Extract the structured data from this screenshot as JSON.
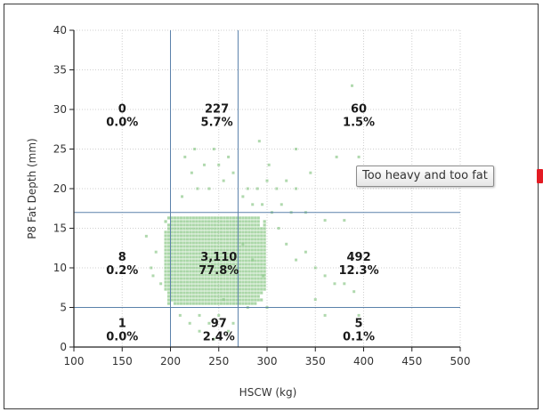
{
  "chart_data": {
    "type": "scatter",
    "title": "",
    "xlabel": "HSCW (kg)",
    "ylabel": "P8 Fat Depth (mm)",
    "xlim": [
      100,
      500
    ],
    "ylim": [
      0,
      40
    ],
    "x_ticks": [
      "100",
      "150",
      "200",
      "250",
      "300",
      "350",
      "400",
      "450",
      "500"
    ],
    "y_ticks": [
      "0",
      "5",
      "10",
      "15",
      "20",
      "25",
      "30",
      "35",
      "40"
    ],
    "grid": true,
    "threshold_lines": {
      "x": [
        200,
        270
      ],
      "y": [
        5,
        17
      ]
    },
    "series_color": "#8fc98b",
    "points": [
      [
        215,
        24
      ],
      [
        225,
        25
      ],
      [
        245,
        25
      ],
      [
        235,
        23
      ],
      [
        250,
        23
      ],
      [
        260,
        24
      ],
      [
        222,
        22
      ],
      [
        228,
        20
      ],
      [
        240,
        20
      ],
      [
        255,
        21
      ],
      [
        265,
        22
      ],
      [
        280,
        20
      ],
      [
        290,
        20
      ],
      [
        300,
        21
      ],
      [
        310,
        20
      ],
      [
        320,
        21
      ],
      [
        330,
        20
      ],
      [
        212,
        19
      ],
      [
        275,
        19
      ],
      [
        285,
        18
      ],
      [
        295,
        18
      ],
      [
        305,
        17
      ],
      [
        315,
        18
      ],
      [
        325,
        17
      ],
      [
        340,
        17
      ],
      [
        360,
        16
      ],
      [
        380,
        16
      ],
      [
        395,
        24
      ],
      [
        388,
        33
      ],
      [
        330,
        25
      ],
      [
        345,
        22
      ],
      [
        372,
        24
      ],
      [
        320,
        13
      ],
      [
        330,
        11
      ],
      [
        340,
        12
      ],
      [
        350,
        10
      ],
      [
        360,
        9
      ],
      [
        370,
        8
      ],
      [
        380,
        8
      ],
      [
        390,
        7
      ],
      [
        210,
        4
      ],
      [
        220,
        3
      ],
      [
        230,
        2
      ],
      [
        240,
        3
      ],
      [
        250,
        4
      ],
      [
        260,
        2
      ],
      [
        265,
        3
      ],
      [
        245,
        1
      ],
      [
        230,
        4
      ],
      [
        360,
        4
      ],
      [
        395,
        4
      ],
      [
        175,
        14
      ],
      [
        180,
        10
      ],
      [
        182,
        9
      ],
      [
        190,
        8
      ],
      [
        185,
        12
      ],
      [
        292,
        26
      ],
      [
        302,
        23
      ],
      [
        312,
        15
      ],
      [
        350,
        6
      ],
      [
        300,
        5
      ],
      [
        280,
        5
      ],
      [
        255,
        6
      ],
      [
        275,
        13
      ],
      [
        285,
        11
      ],
      [
        296,
        9
      ]
    ],
    "dense_region": {
      "x": [
        195,
        298
      ],
      "y": [
        5.5,
        16.5
      ]
    },
    "cells": [
      {
        "count": "0",
        "pct": "0.0%",
        "x": 150,
        "y": 29.5
      },
      {
        "count": "227",
        "pct": "5.7%",
        "x": 248,
        "y": 29.5
      },
      {
        "count": "60",
        "pct": "1.5%",
        "x": 395,
        "y": 29.5
      },
      {
        "count": "8",
        "pct": "0.2%",
        "x": 150,
        "y": 10.8
      },
      {
        "count": "3,110",
        "pct": "77.8%",
        "x": 250,
        "y": 10.8
      },
      {
        "count": "492",
        "pct": "12.3%",
        "x": 395,
        "y": 10.8
      },
      {
        "count": "1",
        "pct": "0.0%",
        "x": 150,
        "y": 2.4
      },
      {
        "count": "97",
        "pct": "2.4%",
        "x": 250,
        "y": 2.4
      },
      {
        "count": "5",
        "pct": "0.1%",
        "x": 395,
        "y": 2.4
      }
    ]
  },
  "tooltip": {
    "text": "Too heavy and too fat"
  },
  "colors": {
    "marker": "#e31b23",
    "threshold_line": "#5b82ab",
    "grid": "#cfcfcf"
  }
}
